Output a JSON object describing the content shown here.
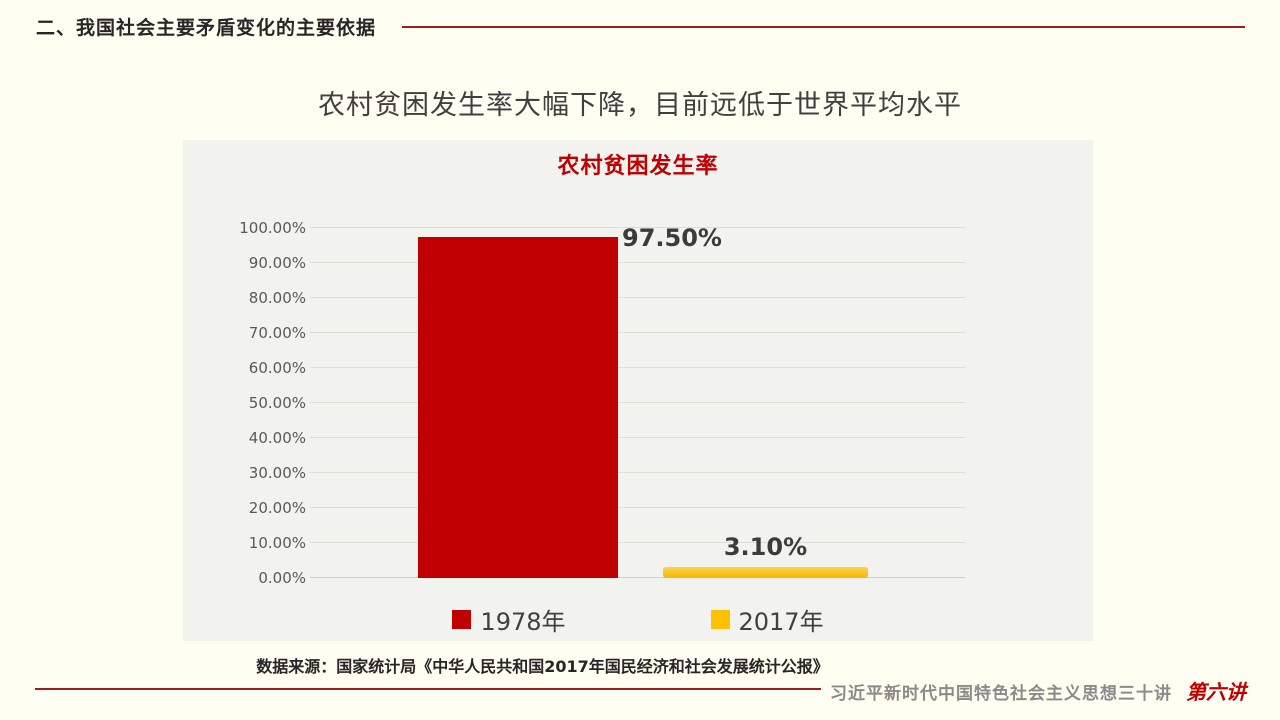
{
  "page": {
    "background": "#FFFEF2",
    "accent_red": "#C00000",
    "rule_red": "#9C1F1F"
  },
  "header": {
    "section_title": "二、我国社会主要矛盾变化的主要依据"
  },
  "slide": {
    "title": "农村贫困发生率大幅下降，目前远低于世界平均水平"
  },
  "chart_data": {
    "type": "bar",
    "title": "农村贫困发生率",
    "categories": [
      "农村贫困发生率"
    ],
    "series": [
      {
        "name": "1978年",
        "values": [
          97.5
        ],
        "label": "97.50%",
        "color": "#C00000"
      },
      {
        "name": "2017年",
        "values": [
          3.1
        ],
        "label": "3.10%",
        "color": "#FFC000"
      }
    ],
    "ylabel": "",
    "xlabel": "",
    "ylim": [
      0,
      100
    ],
    "ytick_step": 10,
    "yticks": [
      "100.00%",
      "90.00%",
      "80.00%",
      "70.00%",
      "60.00%",
      "50.00%",
      "40.00%",
      "30.00%",
      "20.00%",
      "10.00%",
      "0.00%"
    ],
    "grid": true,
    "legend_position": "bottom"
  },
  "source": {
    "text": "数据来源：国家统计局《中华人民共和国2017年国民经济和社会发展统计公报》"
  },
  "footer": {
    "course_title": "习近平新时代中国特色社会主义思想三十讲",
    "lecture_badge": "第六讲"
  }
}
